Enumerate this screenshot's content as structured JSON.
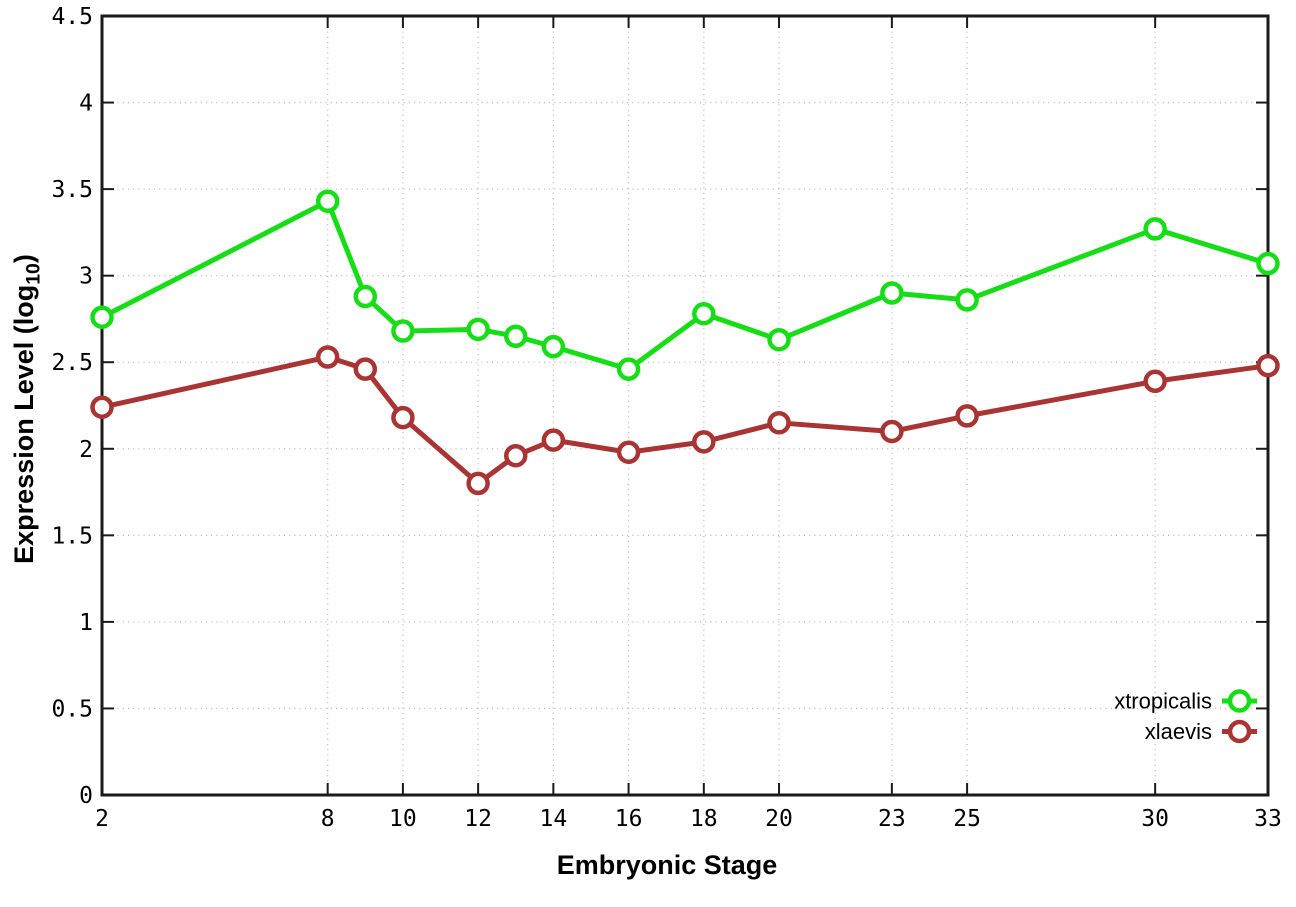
{
  "chart_data": {
    "type": "line",
    "title": "",
    "xlabel": "Embryonic Stage",
    "ylabel": {
      "prefix": "Expression Level (log",
      "subscript": "10",
      "suffix": ")"
    },
    "xlim": [
      2,
      33
    ],
    "ylim": [
      0,
      4.5
    ],
    "grid": true,
    "legend_position": "inside-bottom-right",
    "x": [
      2,
      8,
      9,
      10,
      12,
      13,
      14,
      16,
      18,
      20,
      23,
      25,
      30,
      33
    ],
    "xticks": [
      2,
      8,
      10,
      12,
      14,
      16,
      18,
      20,
      23,
      25,
      30,
      33
    ],
    "xtick_labels": [
      "2",
      "8",
      "10",
      "12",
      "14",
      "16",
      "18",
      "20",
      "23",
      "25",
      "30",
      "33"
    ],
    "yticks": [
      0,
      0.5,
      1,
      1.5,
      2,
      2.5,
      3,
      3.5,
      4,
      4.5
    ],
    "ytick_labels": [
      "0",
      "0.5",
      "1",
      "1.5",
      "2",
      "2.5",
      "3",
      "3.5",
      "4",
      "4.5"
    ],
    "series": [
      {
        "name": "xtropicalis",
        "color": "#16dd16",
        "marker": "open-circle",
        "values": [
          2.76,
          3.43,
          2.88,
          2.68,
          2.69,
          2.65,
          2.59,
          2.46,
          2.78,
          2.63,
          2.9,
          2.86,
          3.27,
          3.07
        ]
      },
      {
        "name": "xlaevis",
        "color": "#a93434",
        "marker": "open-circle",
        "values": [
          2.24,
          2.53,
          2.46,
          2.18,
          1.8,
          1.96,
          2.05,
          1.98,
          2.04,
          2.15,
          2.1,
          2.19,
          2.39,
          2.48
        ]
      }
    ],
    "colors": {
      "axis": "#1a1a1a",
      "grid": "#b8b8b8",
      "text": "#000000",
      "background": "#ffffff"
    }
  }
}
